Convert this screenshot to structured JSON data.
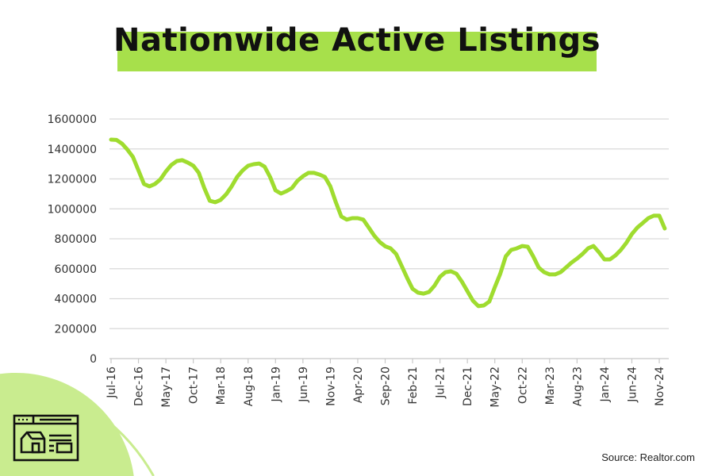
{
  "colors": {
    "accent": "#a7e04b",
    "line": "#9fdc2f",
    "grid": "#d9d9d9",
    "text": "#333333"
  },
  "source": "Source: Realtor.com",
  "icon": "house-listing-browser-icon",
  "chart_data": {
    "type": "line",
    "title": "Nationwide Active Listings",
    "xlabel": "",
    "ylabel": "",
    "ylim": [
      0,
      1600000
    ],
    "yticks": [
      "0",
      "200000",
      "400000",
      "600000",
      "800000",
      "1000000",
      "1200000",
      "1400000",
      "1600000"
    ],
    "grid": true,
    "xtick_labels": [
      "Jul-16",
      "Dec-16",
      "May-17",
      "Oct-17",
      "Mar-18",
      "Aug-18",
      "Jan-19",
      "Jun-19",
      "Nov-19",
      "Apr-20",
      "Sep-20",
      "Feb-21",
      "Jul-21",
      "Dec-21",
      "May-22",
      "Oct-22",
      "Mar-23",
      "Aug-23",
      "Jan-24",
      "Jun-24",
      "Nov-24"
    ],
    "categories": [
      "Jul-16",
      "Aug-16",
      "Sep-16",
      "Oct-16",
      "Nov-16",
      "Dec-16",
      "Jan-17",
      "Feb-17",
      "Mar-17",
      "Apr-17",
      "May-17",
      "Jun-17",
      "Jul-17",
      "Aug-17",
      "Sep-17",
      "Oct-17",
      "Nov-17",
      "Dec-17",
      "Jan-18",
      "Feb-18",
      "Mar-18",
      "Apr-18",
      "May-18",
      "Jun-18",
      "Jul-18",
      "Aug-18",
      "Sep-18",
      "Oct-18",
      "Nov-18",
      "Dec-18",
      "Jan-19",
      "Feb-19",
      "Mar-19",
      "Apr-19",
      "May-19",
      "Jun-19",
      "Jul-19",
      "Aug-19",
      "Sep-19",
      "Oct-19",
      "Nov-19",
      "Dec-19",
      "Jan-20",
      "Feb-20",
      "Mar-20",
      "Apr-20",
      "May-20",
      "Jun-20",
      "Jul-20",
      "Aug-20",
      "Sep-20",
      "Oct-20",
      "Nov-20",
      "Dec-20",
      "Jan-21",
      "Feb-21",
      "Mar-21",
      "Apr-21",
      "May-21",
      "Jun-21",
      "Jul-21",
      "Aug-21",
      "Sep-21",
      "Oct-21",
      "Nov-21",
      "Dec-21",
      "Jan-22",
      "Feb-22",
      "Mar-22",
      "Apr-22",
      "May-22",
      "Jun-22",
      "Jul-22",
      "Aug-22",
      "Sep-22",
      "Oct-22",
      "Nov-22",
      "Dec-22",
      "Jan-23",
      "Feb-23",
      "Mar-23",
      "Apr-23",
      "May-23",
      "Jun-23",
      "Jul-23",
      "Aug-23",
      "Sep-23",
      "Oct-23",
      "Nov-23",
      "Dec-23",
      "Jan-24",
      "Feb-24",
      "Mar-24",
      "Apr-24",
      "May-24",
      "Jun-24",
      "Jul-24",
      "Aug-24",
      "Sep-24",
      "Oct-24",
      "Nov-24",
      "Dec-24"
    ],
    "series": [
      {
        "values": [
          1462000,
          1460000,
          1435000,
          1395000,
          1346000,
          1256000,
          1166000,
          1150000,
          1166000,
          1197000,
          1250000,
          1293000,
          1319000,
          1325000,
          1309000,
          1288000,
          1240000,
          1139000,
          1054000,
          1044000,
          1060000,
          1097000,
          1150000,
          1213000,
          1256000,
          1288000,
          1298000,
          1303000,
          1282000,
          1213000,
          1123000,
          1102000,
          1118000,
          1139000,
          1187000,
          1218000,
          1240000,
          1240000,
          1229000,
          1213000,
          1150000,
          1044000,
          949000,
          928000,
          938000,
          938000,
          928000,
          875000,
          821000,
          779000,
          750000,
          736000,
          699000,
          620000,
          540000,
          466000,
          440000,
          434000,
          445000,
          487000,
          546000,
          577000,
          583000,
          567000,
          514000,
          450000,
          387000,
          350000,
          355000,
          381000,
          477000,
          567000,
          683000,
          726000,
          736000,
          752000,
          747000,
          683000,
          609000,
          577000,
          562000,
          562000,
          577000,
          609000,
          641000,
          668000,
          699000,
          736000,
          752000,
          710000,
          662000,
          662000,
          689000,
          726000,
          773000,
          832000,
          875000,
          906000,
          938000,
          954000,
          954000,
          869000
        ]
      }
    ]
  }
}
